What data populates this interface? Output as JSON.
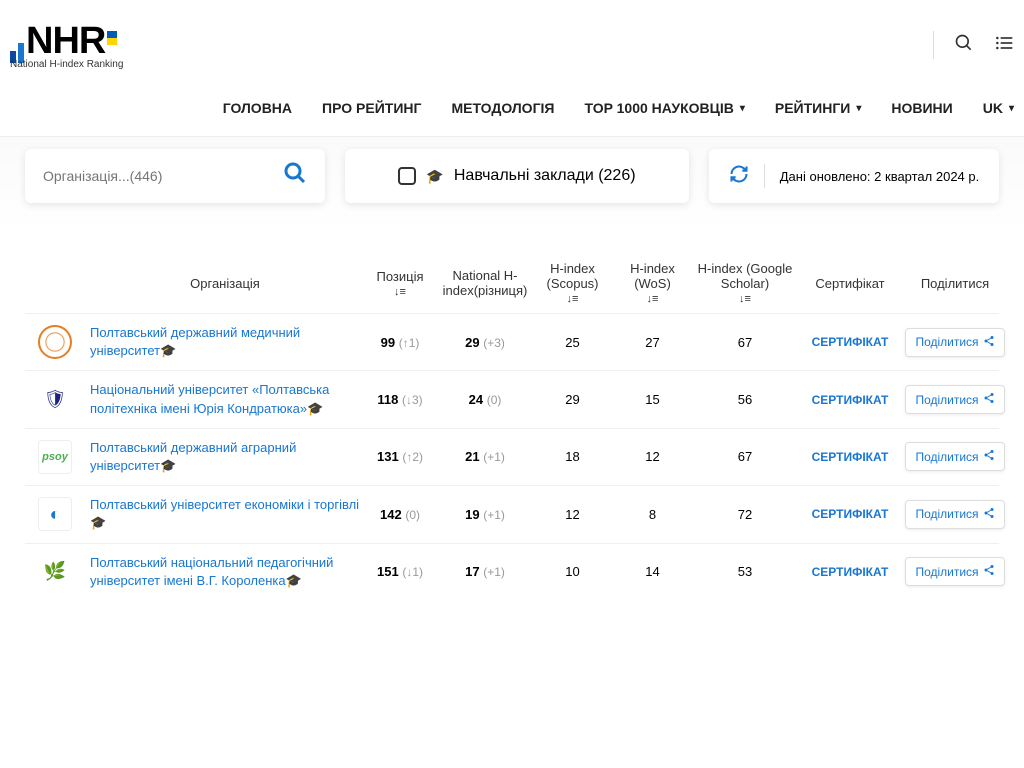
{
  "logo": {
    "text": "NHR",
    "subtitle": "National H-index Ranking"
  },
  "nav": {
    "home": "ГОЛОВНА",
    "about": "ПРО РЕЙТИНГ",
    "methodology": "МЕТОДОЛОГІЯ",
    "top1000": "TOP 1000 НАУКОВЦІВ",
    "ratings": "РЕЙТИНГИ",
    "news": "НОВИНИ",
    "lang": "UK"
  },
  "filters": {
    "search_placeholder": "Організація...(446)",
    "edu_label": "Навчальні заклади (226)",
    "update_label": "Дані оновлено: 2 квартал 2024 р."
  },
  "columns": {
    "org": "Організація",
    "pos": "Позиція",
    "nhi": "National H-index(різниця)",
    "scopus": "H-index (Scopus)",
    "wos": "H-index (WoS)",
    "scholar": "H-index (Google Scholar)",
    "cert": "Сертифікат",
    "share": "Поділитися"
  },
  "labels": {
    "cert_link": "СЕРТИФІКАТ",
    "share_btn": "Поділитися"
  },
  "rows": [
    {
      "name": "Полтавський державний медичний університет",
      "pos": "99",
      "pos_d": "(↑1)",
      "nhi": "29",
      "nhi_d": "(+3)",
      "scopus": "25",
      "wos": "27",
      "scholar": "67",
      "logo_class": "logo-1",
      "logo_glyph": ""
    },
    {
      "name": "Національний університет «Полтавська політехніка імені Юрія Кондратюка»",
      "pos": "118",
      "pos_d": "(↓3)",
      "nhi": "24",
      "nhi_d": "(0)",
      "scopus": "29",
      "wos": "15",
      "scholar": "56",
      "logo_class": "logo-2",
      "logo_glyph": "🛡"
    },
    {
      "name": "Полтавський державний аграрний університет",
      "pos": "131",
      "pos_d": "(↑2)",
      "nhi": "21",
      "nhi_d": "(+1)",
      "scopus": "18",
      "wos": "12",
      "scholar": "67",
      "logo_class": "logo-3",
      "logo_glyph": "psoy"
    },
    {
      "name": "Полтавський університет економіки і торгівлі",
      "pos": "142",
      "pos_d": "(0)",
      "nhi": "19",
      "nhi_d": "(+1)",
      "scopus": "12",
      "wos": "8",
      "scholar": "72",
      "logo_class": "logo-4",
      "logo_glyph": "◐"
    },
    {
      "name": "Полтавський національний педагогічний університет імені В.Г. Короленка",
      "pos": "151",
      "pos_d": "(↓1)",
      "nhi": "17",
      "nhi_d": "(+1)",
      "scopus": "10",
      "wos": "14",
      "scholar": "53",
      "logo_class": "logo-5",
      "logo_glyph": "🌿"
    }
  ]
}
